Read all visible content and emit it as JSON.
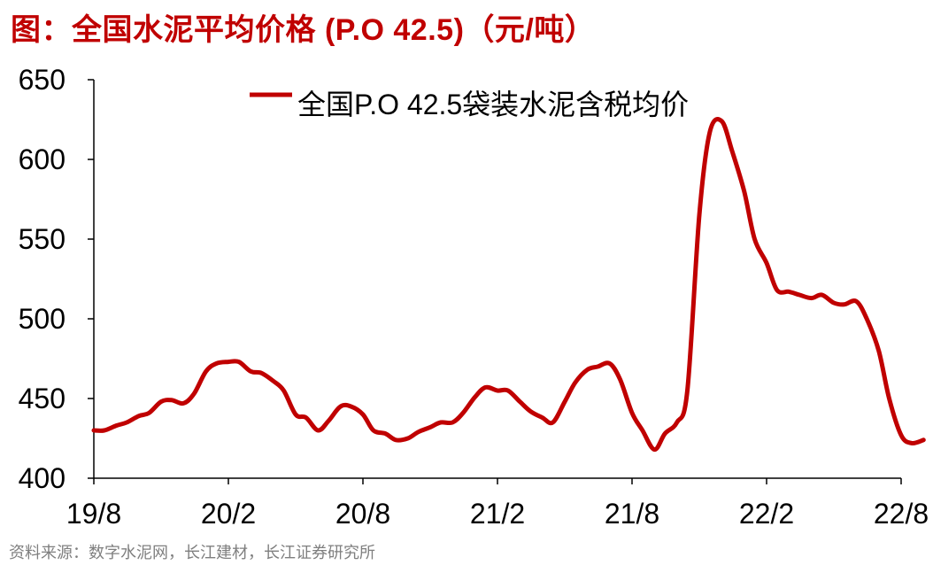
{
  "title": "图：全国水泥平均价格 (P.O 42.5)（元/吨）",
  "source": "资料来源：数字水泥网，长江建材，长江证券研究所",
  "colors": {
    "title": "#c00000",
    "series": "#c00000",
    "axis": "#000000",
    "source": "#7f7f7f"
  },
  "chart_data": {
    "type": "line",
    "title": "图：全国水泥平均价格 (P.O 42.5)（元/吨）",
    "xlabel": "",
    "ylabel": "",
    "ylim": [
      400,
      650
    ],
    "yticks": [
      400,
      450,
      500,
      550,
      600,
      650
    ],
    "xlim": [
      "2019-08",
      "2022-08"
    ],
    "xticks": [
      "19/8",
      "20/2",
      "20/8",
      "21/2",
      "21/8",
      "22/2",
      "22/8"
    ],
    "grid": false,
    "legend_position": "top-center",
    "series": [
      {
        "name": "全国P.O 42.5袋装水泥含税均价",
        "color": "#c00000",
        "points": [
          [
            "2019-08-01",
            430
          ],
          [
            "2019-08-15",
            430
          ],
          [
            "2019-09-01",
            433
          ],
          [
            "2019-09-15",
            435
          ],
          [
            "2019-10-01",
            439
          ],
          [
            "2019-10-15",
            441
          ],
          [
            "2019-11-01",
            448
          ],
          [
            "2019-11-15",
            449
          ],
          [
            "2019-12-01",
            447
          ],
          [
            "2019-12-15",
            453
          ],
          [
            "2020-01-01",
            467
          ],
          [
            "2020-01-15",
            472
          ],
          [
            "2020-02-01",
            473
          ],
          [
            "2020-02-15",
            473
          ],
          [
            "2020-03-01",
            467
          ],
          [
            "2020-03-15",
            466
          ],
          [
            "2020-04-01",
            461
          ],
          [
            "2020-04-15",
            455
          ],
          [
            "2020-05-01",
            440
          ],
          [
            "2020-05-15",
            438
          ],
          [
            "2020-06-01",
            430
          ],
          [
            "2020-06-15",
            436
          ],
          [
            "2020-07-01",
            445
          ],
          [
            "2020-07-15",
            445
          ],
          [
            "2020-08-01",
            440
          ],
          [
            "2020-08-15",
            430
          ],
          [
            "2020-09-01",
            428
          ],
          [
            "2020-09-15",
            424
          ],
          [
            "2020-10-01",
            425
          ],
          [
            "2020-10-15",
            429
          ],
          [
            "2020-11-01",
            432
          ],
          [
            "2020-11-15",
            435
          ],
          [
            "2020-12-01",
            435
          ],
          [
            "2020-12-15",
            441
          ],
          [
            "2021-01-01",
            451
          ],
          [
            "2021-01-15",
            457
          ],
          [
            "2021-02-01",
            455
          ],
          [
            "2021-02-15",
            455
          ],
          [
            "2021-03-01",
            448
          ],
          [
            "2021-03-15",
            442
          ],
          [
            "2021-04-01",
            438
          ],
          [
            "2021-04-15",
            435
          ],
          [
            "2021-05-01",
            448
          ],
          [
            "2021-05-15",
            460
          ],
          [
            "2021-06-01",
            468
          ],
          [
            "2021-06-15",
            470
          ],
          [
            "2021-07-01",
            472
          ],
          [
            "2021-07-15",
            462
          ],
          [
            "2021-08-01",
            441
          ],
          [
            "2021-08-15",
            430
          ],
          [
            "2021-09-01",
            418
          ],
          [
            "2021-09-15",
            428
          ],
          [
            "2021-10-01",
            435
          ],
          [
            "2021-10-15",
            455
          ],
          [
            "2021-11-01",
            565
          ],
          [
            "2021-11-15",
            617
          ],
          [
            "2021-12-01",
            624
          ],
          [
            "2021-12-15",
            605
          ],
          [
            "2022-01-01",
            580
          ],
          [
            "2022-01-15",
            550
          ],
          [
            "2022-02-01",
            535
          ],
          [
            "2022-02-15",
            518
          ],
          [
            "2022-03-01",
            517
          ],
          [
            "2022-03-15",
            515
          ],
          [
            "2022-04-01",
            513
          ],
          [
            "2022-04-15",
            515
          ],
          [
            "2022-05-01",
            510
          ],
          [
            "2022-05-15",
            509
          ],
          [
            "2022-06-01",
            511
          ],
          [
            "2022-06-15",
            500
          ],
          [
            "2022-07-01",
            480
          ],
          [
            "2022-07-15",
            450
          ],
          [
            "2022-08-01",
            427
          ],
          [
            "2022-08-15",
            422
          ],
          [
            "2022-09-01",
            424
          ]
        ]
      }
    ]
  }
}
